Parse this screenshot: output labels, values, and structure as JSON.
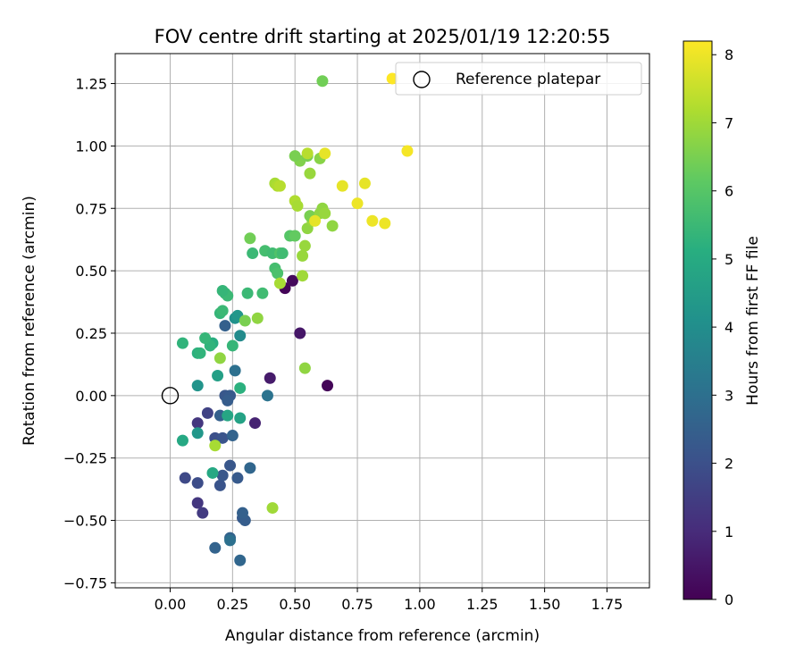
{
  "chart_data": {
    "type": "scatter",
    "title": "FOV centre drift starting at 2025/01/19 12:20:55",
    "xlabel": "Angular distance from reference (arcmin)",
    "ylabel": "Rotation from reference (arcmin)",
    "xlim": [
      -0.22,
      1.92
    ],
    "ylim": [
      -0.77,
      1.37
    ],
    "xticks": [
      "0.00",
      "0.25",
      "0.50",
      "0.75",
      "1.00",
      "1.25",
      "1.50",
      "1.75"
    ],
    "yticks": [
      "−0.75",
      "−0.50",
      "−0.25",
      "0.00",
      "0.25",
      "0.50",
      "0.75",
      "1.00",
      "1.25"
    ],
    "grid": true,
    "legend_position": "top-right",
    "legend_label": "Reference platepar",
    "reference_point": [
      0.0,
      0.0
    ],
    "colorbar": {
      "label": "Hours from first FF file",
      "range": [
        0,
        8.2
      ],
      "ticks": [
        "0",
        "1",
        "2",
        "3",
        "4",
        "5",
        "6",
        "7",
        "8"
      ],
      "colormap": "viridis"
    },
    "points": [
      [
        0.63,
        0.04,
        0.1
      ],
      [
        0.46,
        0.43,
        0.1
      ],
      [
        0.49,
        0.46,
        0.2
      ],
      [
        0.52,
        0.25,
        0.5
      ],
      [
        0.4,
        0.07,
        0.6
      ],
      [
        0.34,
        -0.11,
        0.8
      ],
      [
        0.11,
        -0.11,
        1.3
      ],
      [
        0.11,
        -0.43,
        1.3
      ],
      [
        0.13,
        -0.47,
        1.4
      ],
      [
        0.15,
        -0.07,
        1.6
      ],
      [
        0.06,
        -0.33,
        1.8
      ],
      [
        0.11,
        -0.35,
        1.9
      ],
      [
        0.18,
        -0.17,
        2.0
      ],
      [
        0.21,
        -0.17,
        2.1
      ],
      [
        0.2,
        -0.36,
        2.1
      ],
      [
        0.21,
        -0.32,
        2.2
      ],
      [
        0.24,
        -0.28,
        2.2
      ],
      [
        0.27,
        -0.33,
        2.3
      ],
      [
        0.29,
        -0.49,
        2.3
      ],
      [
        0.3,
        -0.5,
        2.4
      ],
      [
        0.29,
        -0.47,
        2.5
      ],
      [
        0.24,
        -0.57,
        2.6
      ],
      [
        0.18,
        -0.61,
        2.6
      ],
      [
        0.28,
        -0.66,
        2.7
      ],
      [
        0.22,
        0.0,
        2.2
      ],
      [
        0.24,
        0.0,
        2.3
      ],
      [
        0.23,
        -0.02,
        2.4
      ],
      [
        0.22,
        0.28,
        2.5
      ],
      [
        0.2,
        -0.08,
        2.5
      ],
      [
        0.25,
        -0.16,
        2.6
      ],
      [
        0.26,
        0.1,
        3.0
      ],
      [
        0.24,
        -0.58,
        3.0
      ],
      [
        0.32,
        -0.29,
        2.7
      ],
      [
        0.39,
        0.0,
        3.1
      ],
      [
        0.28,
        0.24,
        3.9
      ],
      [
        0.26,
        0.31,
        4.1
      ],
      [
        0.27,
        0.32,
        4.3
      ],
      [
        0.11,
        0.04,
        4.2
      ],
      [
        0.11,
        -0.15,
        4.3
      ],
      [
        0.19,
        0.08,
        4.6
      ],
      [
        0.28,
        -0.09,
        4.7
      ],
      [
        0.23,
        -0.08,
        4.8
      ],
      [
        0.05,
        -0.18,
        4.9
      ],
      [
        0.17,
        -0.31,
        4.9
      ],
      [
        0.28,
        0.03,
        5.2
      ],
      [
        0.17,
        0.21,
        5.1
      ],
      [
        0.16,
        0.2,
        5.3
      ],
      [
        0.11,
        0.17,
        5.2
      ],
      [
        0.12,
        0.17,
        5.3
      ],
      [
        0.14,
        0.23,
        5.4
      ],
      [
        0.25,
        0.2,
        5.4
      ],
      [
        0.05,
        0.21,
        5.3
      ],
      [
        0.2,
        0.33,
        5.4
      ],
      [
        0.21,
        0.34,
        5.5
      ],
      [
        0.22,
        0.41,
        5.4
      ],
      [
        0.23,
        0.4,
        5.5
      ],
      [
        0.21,
        0.42,
        5.4
      ],
      [
        0.31,
        0.41,
        5.5
      ],
      [
        0.33,
        0.57,
        5.5
      ],
      [
        0.37,
        0.41,
        5.6
      ],
      [
        0.38,
        0.58,
        5.7
      ],
      [
        0.41,
        0.57,
        5.6
      ],
      [
        0.42,
        0.51,
        5.7
      ],
      [
        0.43,
        0.49,
        5.8
      ],
      [
        0.44,
        0.57,
        5.9
      ],
      [
        0.45,
        0.57,
        5.6
      ],
      [
        0.48,
        0.64,
        6.0
      ],
      [
        0.5,
        0.64,
        6.2
      ],
      [
        0.32,
        0.63,
        6.4
      ],
      [
        0.3,
        0.3,
        6.5
      ],
      [
        0.35,
        0.31,
        6.8
      ],
      [
        0.2,
        0.15,
        6.8
      ],
      [
        0.18,
        -0.2,
        7.1
      ],
      [
        0.41,
        -0.45,
        7.0
      ],
      [
        0.54,
        0.11,
        6.8
      ],
      [
        0.44,
        0.45,
        7.1
      ],
      [
        0.53,
        0.48,
        7.0
      ],
      [
        0.53,
        0.56,
        6.9
      ],
      [
        0.54,
        0.6,
        6.9
      ],
      [
        0.55,
        0.67,
        6.8
      ],
      [
        0.57,
        0.7,
        6.9
      ],
      [
        0.56,
        0.72,
        6.5
      ],
      [
        0.6,
        0.73,
        6.8
      ],
      [
        0.61,
        0.75,
        6.8
      ],
      [
        0.62,
        0.73,
        6.9
      ],
      [
        0.65,
        0.68,
        6.8
      ],
      [
        0.5,
        0.78,
        7.2
      ],
      [
        0.51,
        0.76,
        7.1
      ],
      [
        0.42,
        0.85,
        7.1
      ],
      [
        0.43,
        0.84,
        7.2
      ],
      [
        0.44,
        0.84,
        7.3
      ],
      [
        0.56,
        0.89,
        6.9
      ],
      [
        0.52,
        0.94,
        6.6
      ],
      [
        0.5,
        0.96,
        6.5
      ],
      [
        0.55,
        0.96,
        6.5
      ],
      [
        0.55,
        0.97,
        7.3
      ],
      [
        0.6,
        0.95,
        6.7
      ],
      [
        0.62,
        0.97,
        7.9
      ],
      [
        0.61,
        1.26,
        6.4
      ],
      [
        0.58,
        0.7,
        7.9
      ],
      [
        0.69,
        0.84,
        7.9
      ],
      [
        0.75,
        0.77,
        8.0
      ],
      [
        0.78,
        0.85,
        7.9
      ],
      [
        0.81,
        0.7,
        8.0
      ],
      [
        0.86,
        0.69,
        8.0
      ],
      [
        0.95,
        0.98,
        8.1
      ],
      [
        0.89,
        1.27,
        8.2
      ]
    ]
  }
}
